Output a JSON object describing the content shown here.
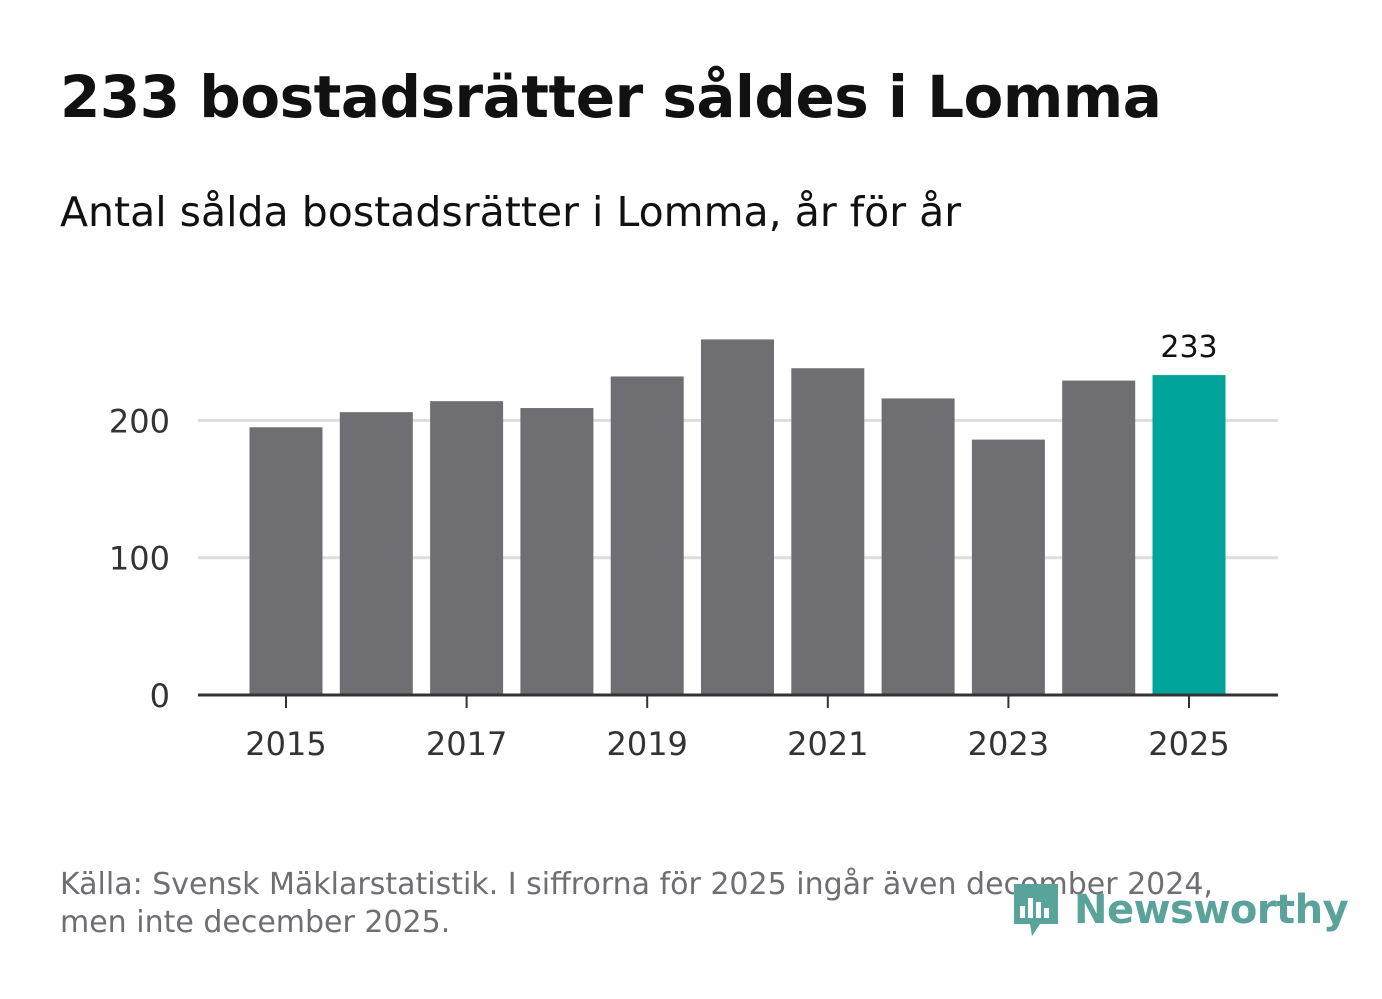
{
  "header": {
    "title": "233 bostadsrätter såldes i Lomma",
    "subtitle": "Antal sålda bostadsrätter i Lomma, år för år"
  },
  "chart_data": {
    "type": "bar",
    "title": "233 bostadsrätter såldes i Lomma",
    "subtitle": "Antal sålda bostadsrätter i Lomma, år för år",
    "categories": [
      2015,
      2016,
      2017,
      2018,
      2019,
      2020,
      2021,
      2022,
      2023,
      2024,
      2025
    ],
    "values": [
      195,
      206,
      214,
      209,
      232,
      259,
      238,
      216,
      186,
      229,
      233
    ],
    "xlabel": "",
    "ylabel": "",
    "ylim": [
      0,
      280
    ],
    "yticks": [
      0,
      100,
      200
    ],
    "xticks": [
      2015,
      2017,
      2019,
      2021,
      2023,
      2025
    ],
    "grid": true,
    "highlight": {
      "category": 2025,
      "label": "233"
    },
    "colors": {
      "bar": "#6f6e73",
      "highlight": "#00a49a",
      "grid": "#dddddd",
      "axis": "#333333"
    }
  },
  "footer": {
    "source_line1": "Källa: Svensk Mäklarstatistik. I siffrorna för 2025 ingår även december 2024,",
    "source_line2": "men inte december 2025."
  },
  "brand": {
    "name": "Newsworthy",
    "icon": "newsworthy-logo-icon",
    "color": "#5aa39b"
  }
}
